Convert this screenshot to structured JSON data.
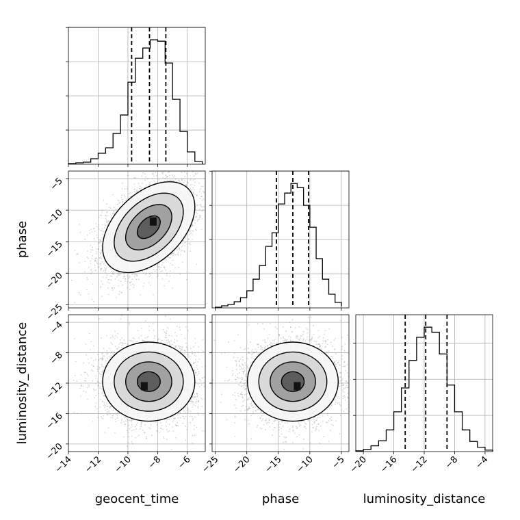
{
  "chart_data": {
    "type": "corner",
    "parameters": [
      "geocent_time",
      "phase",
      "luminosity_distance"
    ],
    "axes_labels": {
      "x": [
        "geocent_time",
        "phase",
        "luminosity_distance"
      ],
      "y": [
        "phase",
        "luminosity_distance"
      ]
    },
    "grid": true,
    "ranges": {
      "geocent_time": [
        -14,
        -4.8
      ],
      "phase": [
        -25.5,
        -3.8
      ],
      "luminosity_distance": [
        -21,
        -3
      ]
    },
    "ticks": {
      "geocent_time": [
        -14,
        -12,
        -10,
        -8,
        -6
      ],
      "phase": [
        -25,
        -20,
        -15,
        -10,
        -5
      ],
      "luminosity_distance": [
        -20,
        -16,
        -12,
        -8,
        -4
      ]
    },
    "tick_labels": {
      "geocent_time": [
        "−14",
        "−12",
        "−10",
        "−8",
        "−6"
      ],
      "phase": [
        "−25",
        "−20",
        "−15",
        "−10",
        "−5"
      ],
      "luminosity_distance": [
        "−20",
        "−16",
        "−12",
        "−8",
        "−4"
      ]
    },
    "quantiles": {
      "geocent_time": [
        -9.75,
        -8.55,
        -7.45
      ],
      "phase": [
        -15.3,
        -12.7,
        -10.2
      ],
      "luminosity_distance": [
        -14.5,
        -11.8,
        -9.0
      ]
    },
    "histograms": {
      "geocent_time": {
        "edges": [
          -14.0,
          -13.5,
          -13.0,
          -12.5,
          -12.0,
          -11.5,
          -11.0,
          -10.5,
          -10.0,
          -9.5,
          -9.0,
          -8.5,
          -8.0,
          -7.5,
          -7.0,
          -6.5,
          -6.0,
          -5.5,
          -5.0
        ],
        "counts": [
          1,
          2,
          3,
          8,
          16,
          24,
          45,
          72,
          120,
          155,
          170,
          182,
          180,
          148,
          95,
          48,
          18,
          4
        ]
      },
      "phase": {
        "edges": [
          -25.0,
          -24.0,
          -23.0,
          -22.0,
          -21.0,
          -20.0,
          -19.0,
          -18.0,
          -17.0,
          -16.0,
          -15.0,
          -14.0,
          -13.0,
          -12.0,
          -11.0,
          -10.0,
          -9.0,
          -8.0,
          -7.0,
          -6.0,
          -5.0
        ],
        "counts": [
          1,
          3,
          5,
          9,
          15,
          25,
          42,
          62,
          90,
          110,
          152,
          168,
          182,
          176,
          150,
          118,
          72,
          42,
          20,
          8,
          2
        ]
      },
      "luminosity_distance": {
        "edges": [
          -21.0,
          -20.0,
          -19.0,
          -18.0,
          -17.0,
          -16.0,
          -15.0,
          -14.0,
          -13.0,
          -12.0,
          -11.0,
          -10.0,
          -9.0,
          -8.0,
          -7.0,
          -6.0,
          -5.0,
          -4.0,
          -3.0
        ],
        "counts": [
          1,
          3,
          8,
          15,
          30,
          55,
          88,
          126,
          158,
          172,
          165,
          135,
          92,
          55,
          30,
          14,
          6,
          2
        ]
      }
    },
    "pairs": [
      {
        "x": "geocent_time",
        "y": "phase",
        "mean": [
          -8.6,
          -12.7
        ],
        "sd": [
          1.55,
          3.6
        ],
        "rho": 0.45,
        "contour_levels": [
          0.5,
          1.0,
          1.5,
          2.0
        ],
        "n_points": 4200,
        "peak": [
          -8.3,
          -11.8
        ]
      },
      {
        "x": "geocent_time",
        "y": "luminosity_distance",
        "mean": [
          -8.6,
          -11.8
        ],
        "sd": [
          1.55,
          2.6
        ],
        "rho": 0.0,
        "contour_levels": [
          0.5,
          1.0,
          1.5,
          2.0
        ],
        "n_points": 4200,
        "peak": [
          -8.9,
          -12.4
        ]
      },
      {
        "x": "phase",
        "y": "luminosity_distance",
        "mean": [
          -12.7,
          -11.8
        ],
        "sd": [
          3.6,
          2.6
        ],
        "rho": 0.0,
        "contour_levels": [
          0.5,
          1.0,
          1.5,
          2.0
        ],
        "n_points": 4200,
        "peak": [
          -12.0,
          -12.4
        ]
      }
    ],
    "colors": {
      "line": "#000000",
      "grid": "#b0b0b0",
      "points": "#888888",
      "density_light": "#f0f0f0",
      "density_dark": "#111111"
    }
  }
}
